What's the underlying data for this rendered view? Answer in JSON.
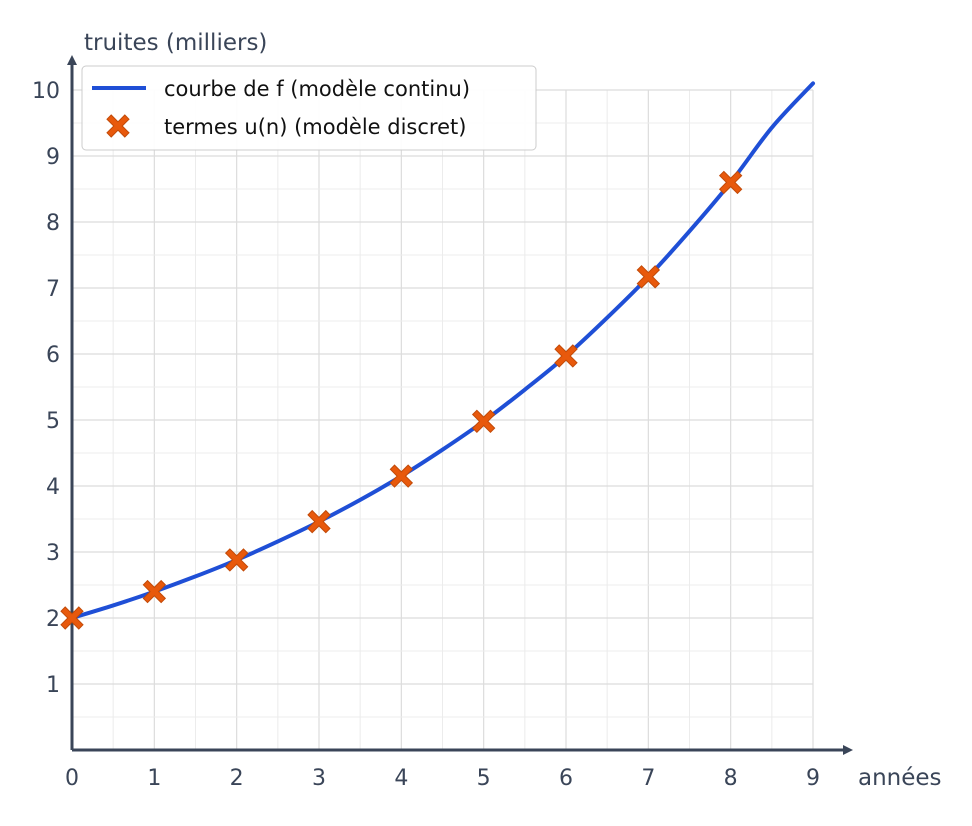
{
  "chart_data": {
    "type": "line",
    "xlabel": "années",
    "ylabel": "truites (milliers)",
    "xlim": [
      0,
      9
    ],
    "ylim": [
      0,
      10
    ],
    "x_ticks": [
      0,
      1,
      2,
      3,
      4,
      5,
      6,
      7,
      8,
      9
    ],
    "y_ticks": [
      1,
      2,
      3,
      4,
      5,
      6,
      7,
      8,
      9,
      10
    ],
    "grid": true,
    "legend_position": "top-left",
    "series": [
      {
        "name": "courbe de f (modèle continu)",
        "kind": "line",
        "color": "#1f4fd6",
        "x": [
          0,
          0.5,
          1,
          1.5,
          2,
          2.5,
          3,
          3.5,
          4,
          4.5,
          5,
          5.5,
          6,
          6.5,
          7,
          7.5,
          8,
          8.5,
          9
        ],
        "y": [
          2.0,
          2.19,
          2.4,
          2.63,
          2.88,
          3.16,
          3.46,
          3.79,
          4.15,
          4.55,
          4.98,
          5.46,
          5.97,
          6.55,
          7.17,
          7.86,
          8.6,
          9.43,
          10.1
        ]
      },
      {
        "name": "termes u(n) (modèle discret)",
        "kind": "marker",
        "marker": "x",
        "color": "#e8590c",
        "x": [
          0,
          1,
          2,
          3,
          4,
          5,
          6,
          7,
          8
        ],
        "y": [
          2.0,
          2.4,
          2.88,
          3.46,
          4.15,
          4.98,
          5.97,
          7.17,
          8.6
        ]
      }
    ]
  }
}
